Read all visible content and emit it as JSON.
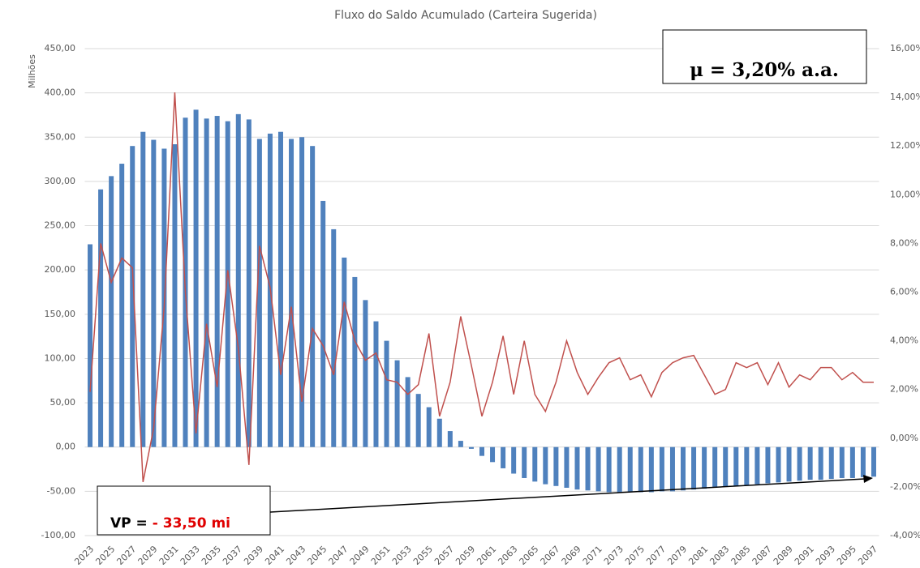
{
  "chart_data": {
    "type": "bar_line",
    "title": "Fluxo do Saldo Acumulado (Carteira Sugerida)",
    "y_label": "Milhões",
    "categories": [
      "2023",
      null,
      "2025",
      null,
      "2027",
      null,
      "2029",
      null,
      "2031",
      null,
      "2033",
      null,
      "2035",
      null,
      "2037",
      null,
      "2039",
      null,
      "2041",
      null,
      "2043",
      null,
      "2045",
      null,
      "2047",
      null,
      "2049",
      null,
      "2051",
      null,
      "2053",
      null,
      "2055",
      null,
      "2057",
      null,
      "2059",
      null,
      "2061",
      null,
      "2063",
      null,
      "2065",
      null,
      "2067",
      null,
      "2069",
      null,
      "2071",
      null,
      "2073",
      null,
      "2075",
      null,
      "2077",
      null,
      "2079",
      null,
      "2081",
      null,
      "2083",
      null,
      "2085",
      null,
      "2087",
      null,
      "2089",
      null,
      "2091",
      null,
      "2093",
      null,
      "2095",
      null,
      "2097"
    ],
    "series": [
      {
        "type": "bar",
        "color": "#4f81bd",
        "values": [
          229,
          291,
          306,
          320,
          340,
          356,
          347,
          337,
          342,
          372,
          381,
          371,
          374,
          368,
          376,
          370,
          348,
          354,
          356,
          348,
          350,
          340,
          278,
          246,
          214,
          192,
          166,
          142,
          120,
          98,
          79,
          60,
          45,
          32,
          18,
          7,
          -2,
          -10,
          -17,
          -24,
          -30,
          -35,
          -39,
          -42,
          -44,
          -46,
          -48,
          -49,
          -50,
          -51,
          -51,
          -51,
          -51,
          -51,
          -50,
          -50,
          -49,
          -48,
          -47,
          -46,
          -45,
          -44,
          -43,
          -42,
          -41,
          -40,
          -39,
          -38,
          -37,
          -37,
          -36,
          -35,
          -35,
          -34,
          -33.5
        ]
      },
      {
        "type": "line",
        "axis": "y2",
        "color": "#c0504d",
        "values": [
          1.9,
          8.0,
          6.4,
          7.4,
          7.0,
          -1.8,
          0.4,
          5.4,
          14.2,
          6.0,
          0.2,
          4.7,
          2.1,
          6.9,
          3.7,
          -1.1,
          7.9,
          6.2,
          2.6,
          5.4,
          1.5,
          4.5,
          3.8,
          2.6,
          5.6,
          4.0,
          3.2,
          3.5,
          2.4,
          2.3,
          1.8,
          2.2,
          4.3,
          0.9,
          2.3,
          5.0,
          3.0,
          0.9,
          2.3,
          4.2,
          1.8,
          4.0,
          1.8,
          1.1,
          2.3,
          4.0,
          2.7,
          1.8,
          2.5,
          3.1,
          3.3,
          2.4,
          2.6,
          1.7,
          2.7,
          3.1,
          3.3,
          3.4,
          2.6,
          1.8,
          2.0,
          3.1,
          2.9,
          3.1,
          2.2,
          3.1,
          2.1,
          2.6,
          2.4,
          2.9,
          2.9,
          2.4,
          2.7,
          2.3,
          2.3
        ]
      }
    ],
    "ylim": [
      -100,
      450
    ],
    "yticks": [
      {
        "value": -100,
        "label": "-100,00"
      },
      {
        "value": -50,
        "label": "-50,00"
      },
      {
        "value": 0,
        "label": "0,00"
      },
      {
        "value": 50,
        "label": "50,00"
      },
      {
        "value": 100,
        "label": "100,00"
      },
      {
        "value": 150,
        "label": "150,00"
      },
      {
        "value": 200,
        "label": "200,00"
      },
      {
        "value": 250,
        "label": "250,00"
      },
      {
        "value": 300,
        "label": "300,00"
      },
      {
        "value": 350,
        "label": "350,00"
      },
      {
        "value": 400,
        "label": "400,00"
      },
      {
        "value": 450,
        "label": "450,00"
      }
    ],
    "y2lim": [
      -4,
      16
    ],
    "y2ticks": [
      {
        "value": -4,
        "label": "-4,00%"
      },
      {
        "value": -2,
        "label": "-2,00%"
      },
      {
        "value": 0,
        "label": "0,00%"
      },
      {
        "value": 2,
        "label": "2,00%"
      },
      {
        "value": 4,
        "label": "4,00%"
      },
      {
        "value": 6,
        "label": "6,00%"
      },
      {
        "value": 8,
        "label": "8,00%"
      },
      {
        "value": 10,
        "label": "10,00%"
      },
      {
        "value": 12,
        "label": "12,00%"
      },
      {
        "value": 14,
        "label": "14,00%"
      },
      {
        "value": 16,
        "label": "16,00%"
      }
    ],
    "grid": true,
    "annotations": {
      "mu": "μ = 3,20% a.a.",
      "vp_label": "VP =",
      "vp_value": "- 33,50 mi"
    }
  }
}
